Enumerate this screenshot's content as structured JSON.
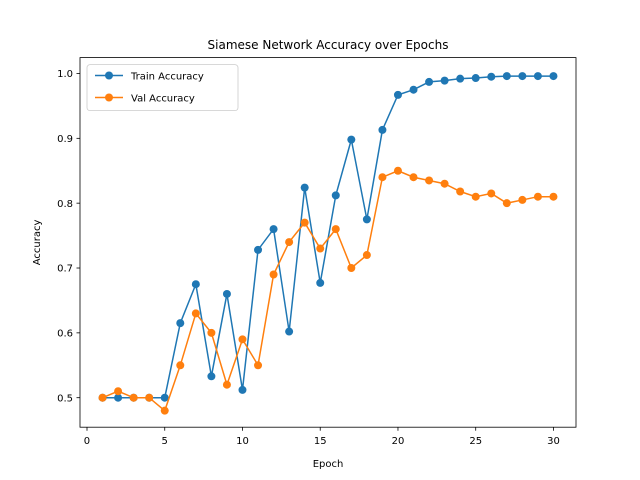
{
  "chart_data": {
    "type": "line",
    "title": "Siamese Network Accuracy over Epochs",
    "xlabel": "Epoch",
    "ylabel": "Accuracy",
    "xlim": [
      -0.45,
      31.45
    ],
    "ylim": [
      0.4545,
      1.0245
    ],
    "xticks": [
      0,
      5,
      10,
      15,
      20,
      25,
      30
    ],
    "yticks": [
      0.5,
      0.6,
      0.7,
      0.8,
      0.9,
      1.0
    ],
    "xtick_labels": [
      "0",
      "5",
      "10",
      "15",
      "20",
      "25",
      "30"
    ],
    "ytick_labels": [
      "0.5",
      "0.6",
      "0.7",
      "0.8",
      "0.9",
      "1.0"
    ],
    "grid": false,
    "legend_position": "upper-left",
    "x": [
      1,
      2,
      3,
      4,
      5,
      6,
      7,
      8,
      9,
      10,
      11,
      12,
      13,
      14,
      15,
      16,
      17,
      18,
      19,
      20,
      21,
      22,
      23,
      24,
      25,
      26,
      27,
      28,
      29,
      30
    ],
    "series": [
      {
        "name": "Train Accuracy",
        "color": "#1f77b4",
        "marker": "circle",
        "values": [
          0.5,
          0.5,
          0.5,
          0.5,
          0.5,
          0.615,
          0.675,
          0.533,
          0.66,
          0.512,
          0.728,
          0.76,
          0.602,
          0.824,
          0.677,
          0.812,
          0.898,
          0.775,
          0.913,
          0.967,
          0.975,
          0.987,
          0.989,
          0.992,
          0.993,
          0.995,
          0.996,
          0.996,
          0.996,
          0.996
        ]
      },
      {
        "name": "Val Accuracy",
        "color": "#ff7f0e",
        "marker": "circle",
        "values": [
          0.5,
          0.51,
          0.5,
          0.5,
          0.48,
          0.55,
          0.63,
          0.6,
          0.52,
          0.59,
          0.55,
          0.69,
          0.74,
          0.77,
          0.73,
          0.76,
          0.7,
          0.72,
          0.84,
          0.85,
          0.84,
          0.835,
          0.83,
          0.818,
          0.81,
          0.815,
          0.8,
          0.805,
          0.81,
          0.81
        ]
      }
    ]
  }
}
